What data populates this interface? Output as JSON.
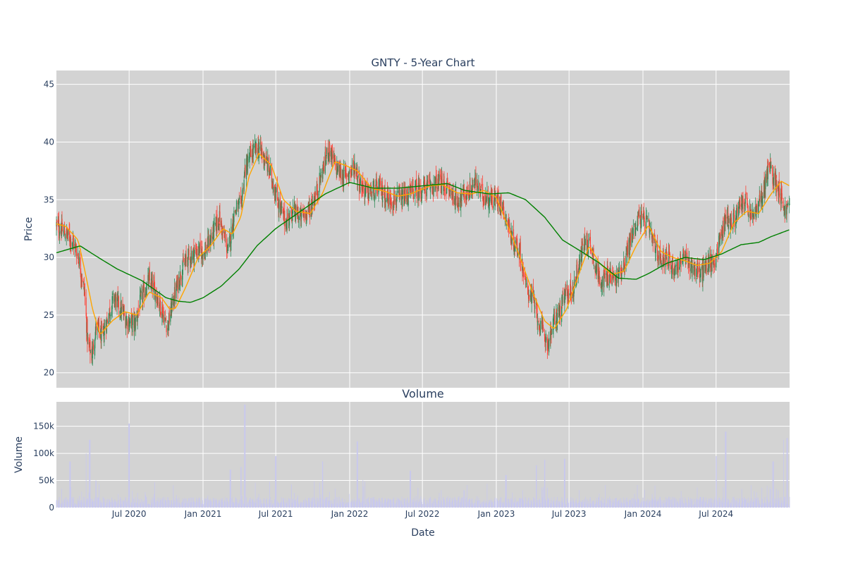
{
  "chart_data": {
    "type": "candlestick",
    "title": "GNTY - 5-Year Chart",
    "price_panel": {
      "ylabel": "Price",
      "y_ticks": [
        20,
        25,
        30,
        35,
        40,
        45
      ],
      "ylim": [
        18.7,
        46.2
      ],
      "up_color": "#2e8b57",
      "down_color": "#ff4136",
      "ma_short_color": "#ffa500",
      "ma_long_color": "#008000",
      "keypoints_close": [
        [
          "2020-01-02",
          32.8
        ],
        [
          "2020-01-20",
          32.2
        ],
        [
          "2020-02-10",
          31.5
        ],
        [
          "2020-02-25",
          30.2
        ],
        [
          "2020-03-12",
          27.0
        ],
        [
          "2020-03-20",
          22.5
        ],
        [
          "2020-03-30",
          21.5
        ],
        [
          "2020-04-10",
          24.0
        ],
        [
          "2020-04-25",
          23.0
        ],
        [
          "2020-05-10",
          25.0
        ],
        [
          "2020-05-25",
          26.5
        ],
        [
          "2020-06-10",
          25.5
        ],
        [
          "2020-06-25",
          24.5
        ],
        [
          "2020-07-15",
          24.2
        ],
        [
          "2020-08-01",
          26.5
        ],
        [
          "2020-08-20",
          28.0
        ],
        [
          "2020-09-05",
          27.0
        ],
        [
          "2020-09-20",
          25.5
        ],
        [
          "2020-10-05",
          24.0
        ],
        [
          "2020-10-20",
          26.5
        ],
        [
          "2020-11-10",
          29.0
        ],
        [
          "2020-11-25",
          30.0
        ],
        [
          "2020-12-15",
          30.5
        ],
        [
          "2021-01-05",
          30.5
        ],
        [
          "2021-01-25",
          32.0
        ],
        [
          "2021-02-10",
          33.5
        ],
        [
          "2021-02-20",
          32.0
        ],
        [
          "2021-03-05",
          30.5
        ],
        [
          "2021-03-20",
          34.0
        ],
        [
          "2021-04-05",
          34.5
        ],
        [
          "2021-04-15",
          37.5
        ],
        [
          "2021-05-01",
          39.0
        ],
        [
          "2021-05-20",
          39.5
        ],
        [
          "2021-06-05",
          38.5
        ],
        [
          "2021-06-20",
          37.0
        ],
        [
          "2021-07-05",
          35.0
        ],
        [
          "2021-07-25",
          33.0
        ],
        [
          "2021-08-10",
          34.0
        ],
        [
          "2021-09-01",
          33.5
        ],
        [
          "2021-09-20",
          34.0
        ],
        [
          "2021-10-10",
          35.5
        ],
        [
          "2021-10-25",
          37.5
        ],
        [
          "2021-11-10",
          39.5
        ],
        [
          "2021-11-25",
          38.0
        ],
        [
          "2021-12-15",
          37.0
        ],
        [
          "2022-01-05",
          37.5
        ],
        [
          "2022-01-15",
          38.0
        ],
        [
          "2022-01-25",
          36.5
        ],
        [
          "2022-02-15",
          35.5
        ],
        [
          "2022-03-15",
          36.0
        ],
        [
          "2022-04-10",
          35.0
        ],
        [
          "2022-05-10",
          35.0
        ],
        [
          "2022-06-10",
          35.8
        ],
        [
          "2022-07-10",
          36.0
        ],
        [
          "2022-08-10",
          36.5
        ],
        [
          "2022-09-01",
          36.0
        ],
        [
          "2022-09-25",
          35.0
        ],
        [
          "2022-10-20",
          35.5
        ],
        [
          "2022-11-10",
          36.5
        ],
        [
          "2022-11-25",
          35.5
        ],
        [
          "2022-12-20",
          35.0
        ],
        [
          "2023-01-10",
          35.0
        ],
        [
          "2023-01-25",
          33.5
        ],
        [
          "2023-02-10",
          31.5
        ],
        [
          "2023-03-01",
          30.5
        ],
        [
          "2023-03-15",
          27.5
        ],
        [
          "2023-04-01",
          26.5
        ],
        [
          "2023-04-20",
          24.0
        ],
        [
          "2023-05-10",
          22.5
        ],
        [
          "2023-05-25",
          24.5
        ],
        [
          "2023-06-10",
          25.5
        ],
        [
          "2023-06-25",
          27.0
        ],
        [
          "2023-07-10",
          27.0
        ],
        [
          "2023-07-25",
          29.5
        ],
        [
          "2023-08-10",
          31.5
        ],
        [
          "2023-08-25",
          31.0
        ],
        [
          "2023-09-10",
          28.5
        ],
        [
          "2023-09-25",
          28.0
        ],
        [
          "2023-10-10",
          28.5
        ],
        [
          "2023-10-25",
          28.0
        ],
        [
          "2023-11-15",
          29.5
        ],
        [
          "2023-12-01",
          31.5
        ],
        [
          "2023-12-20",
          33.5
        ],
        [
          "2024-01-10",
          33.0
        ],
        [
          "2024-01-25",
          31.5
        ],
        [
          "2024-02-10",
          30.0
        ],
        [
          "2024-03-01",
          30.0
        ],
        [
          "2024-03-20",
          29.0
        ],
        [
          "2024-04-10",
          30.0
        ],
        [
          "2024-04-25",
          29.5
        ],
        [
          "2024-05-10",
          29.0
        ],
        [
          "2024-05-25",
          28.5
        ],
        [
          "2024-06-10",
          29.5
        ],
        [
          "2024-06-25",
          29.5
        ],
        [
          "2024-07-10",
          31.5
        ],
        [
          "2024-07-25",
          33.5
        ],
        [
          "2024-08-10",
          33.0
        ],
        [
          "2024-08-25",
          34.0
        ],
        [
          "2024-09-10",
          35.0
        ],
        [
          "2024-09-25",
          33.5
        ],
        [
          "2024-10-10",
          34.0
        ],
        [
          "2024-10-25",
          35.5
        ],
        [
          "2024-11-10",
          38.0
        ],
        [
          "2024-11-20",
          37.0
        ],
        [
          "2024-12-05",
          36.0
        ],
        [
          "2024-12-20",
          34.0
        ],
        [
          "2024-12-31",
          34.5
        ]
      ],
      "ma_short_keypoints": [
        [
          "2020-01-02",
          32.9
        ],
        [
          "2020-01-25",
          32.7
        ],
        [
          "2020-02-25",
          31.5
        ],
        [
          "2020-03-15",
          28.5
        ],
        [
          "2020-04-01",
          25.5
        ],
        [
          "2020-04-20",
          23.3
        ],
        [
          "2020-05-20",
          24.5
        ],
        [
          "2020-06-20",
          25.3
        ],
        [
          "2020-07-20",
          25.0
        ],
        [
          "2020-08-20",
          27.0
        ],
        [
          "2020-09-20",
          26.5
        ],
        [
          "2020-10-10",
          25.5
        ],
        [
          "2020-10-25",
          25.6
        ],
        [
          "2020-11-20",
          27.5
        ],
        [
          "2020-12-20",
          30.0
        ],
        [
          "2021-01-20",
          31.0
        ],
        [
          "2021-02-20",
          32.5
        ],
        [
          "2021-03-15",
          32.0
        ],
        [
          "2021-04-05",
          33.5
        ],
        [
          "2021-04-25",
          37.0
        ],
        [
          "2021-05-20",
          39.0
        ],
        [
          "2021-06-20",
          38.0
        ],
        [
          "2021-07-20",
          35.0
        ],
        [
          "2021-08-20",
          34.0
        ],
        [
          "2021-09-25",
          33.8
        ],
        [
          "2021-10-25",
          35.5
        ],
        [
          "2021-11-25",
          38.3
        ],
        [
          "2021-12-20",
          38.0
        ],
        [
          "2022-01-20",
          37.5
        ],
        [
          "2022-02-25",
          36.0
        ],
        [
          "2022-04-01",
          35.7
        ],
        [
          "2022-05-01",
          35.3
        ],
        [
          "2022-06-01",
          35.5
        ],
        [
          "2022-07-20",
          36.2
        ],
        [
          "2022-08-20",
          36.3
        ],
        [
          "2022-09-25",
          35.6
        ],
        [
          "2022-11-01",
          35.5
        ],
        [
          "2022-12-01",
          35.8
        ],
        [
          "2023-01-01",
          35.2
        ],
        [
          "2023-02-01",
          32.5
        ],
        [
          "2023-03-01",
          30.0
        ],
        [
          "2023-04-01",
          27.0
        ],
        [
          "2023-05-01",
          24.5
        ],
        [
          "2023-05-25",
          23.8
        ],
        [
          "2023-06-25",
          25.5
        ],
        [
          "2023-07-25",
          28.5
        ],
        [
          "2023-08-20",
          31.0
        ],
        [
          "2023-09-15",
          29.5
        ],
        [
          "2023-10-15",
          28.5
        ],
        [
          "2023-11-15",
          28.8
        ],
        [
          "2023-12-15",
          31.0
        ],
        [
          "2024-01-15",
          32.8
        ],
        [
          "2024-02-15",
          30.5
        ],
        [
          "2024-03-15",
          30.0
        ],
        [
          "2024-04-15",
          29.7
        ],
        [
          "2024-05-15",
          29.3
        ],
        [
          "2024-06-15",
          29.5
        ],
        [
          "2024-07-15",
          30.5
        ],
        [
          "2024-08-15",
          33.0
        ],
        [
          "2024-09-15",
          34.0
        ],
        [
          "2024-10-15",
          33.8
        ],
        [
          "2024-11-15",
          35.5
        ],
        [
          "2024-12-10",
          36.6
        ],
        [
          "2024-12-31",
          36.2
        ]
      ],
      "ma_long_keypoints": [
        [
          "2020-01-02",
          30.4
        ],
        [
          "2020-03-01",
          31.0
        ],
        [
          "2020-04-15",
          30.0
        ],
        [
          "2020-06-01",
          29.0
        ],
        [
          "2020-08-01",
          28.0
        ],
        [
          "2020-10-01",
          26.5
        ],
        [
          "2020-11-01",
          26.2
        ],
        [
          "2020-12-01",
          26.1
        ],
        [
          "2021-01-01",
          26.5
        ],
        [
          "2021-02-15",
          27.5
        ],
        [
          "2021-04-01",
          29.0
        ],
        [
          "2021-05-15",
          31.0
        ],
        [
          "2021-07-01",
          32.5
        ],
        [
          "2021-09-01",
          34.0
        ],
        [
          "2021-11-01",
          35.5
        ],
        [
          "2022-01-01",
          36.5
        ],
        [
          "2022-03-01",
          36.0
        ],
        [
          "2022-05-01",
          36.0
        ],
        [
          "2022-07-01",
          36.2
        ],
        [
          "2022-09-01",
          36.4
        ],
        [
          "2022-10-15",
          35.8
        ],
        [
          "2022-12-15",
          35.5
        ],
        [
          "2023-02-01",
          35.6
        ],
        [
          "2023-03-15",
          35.0
        ],
        [
          "2023-05-01",
          33.5
        ],
        [
          "2023-06-15",
          31.5
        ],
        [
          "2023-08-01",
          30.5
        ],
        [
          "2023-09-15",
          29.5
        ],
        [
          "2023-11-01",
          28.2
        ],
        [
          "2023-12-15",
          28.1
        ],
        [
          "2024-01-15",
          28.6
        ],
        [
          "2024-03-01",
          29.5
        ],
        [
          "2024-04-15",
          30.0
        ],
        [
          "2024-06-01",
          29.8
        ],
        [
          "2024-07-15",
          30.3
        ],
        [
          "2024-09-01",
          31.1
        ],
        [
          "2024-10-15",
          31.3
        ],
        [
          "2024-11-15",
          31.8
        ],
        [
          "2024-12-31",
          32.4
        ]
      ]
    },
    "volume_panel": {
      "subtitle": "Volume",
      "ylabel": "Volume",
      "y_ticks": [
        0,
        50000,
        100000,
        150000
      ],
      "y_tick_labels": [
        "0",
        "50k",
        "100k",
        "150k"
      ],
      "ylim": [
        0,
        195000
      ],
      "bar_color": "#c8c8ee",
      "spikes": [
        [
          "2020-02-05",
          85000
        ],
        [
          "2020-03-15",
          100000
        ],
        [
          "2020-03-25",
          125000
        ],
        [
          "2020-04-10",
          50000
        ],
        [
          "2020-07-01",
          155000
        ],
        [
          "2021-03-10",
          70000
        ],
        [
          "2021-04-05",
          75000
        ],
        [
          "2021-04-15",
          190000
        ],
        [
          "2021-07-01",
          95000
        ],
        [
          "2021-10-25",
          85000
        ],
        [
          "2022-01-20",
          122000
        ],
        [
          "2022-06-01",
          68000
        ],
        [
          "2023-01-25",
          60000
        ],
        [
          "2023-04-10",
          78000
        ],
        [
          "2023-05-01",
          88000
        ],
        [
          "2023-06-20",
          90000
        ],
        [
          "2024-07-01",
          95000
        ],
        [
          "2024-07-25",
          140000
        ],
        [
          "2024-11-20",
          85000
        ],
        [
          "2024-12-15",
          125000
        ],
        [
          "2024-12-25",
          128000
        ]
      ]
    },
    "x_axis": {
      "label": "Date",
      "range": [
        "2020-01-02",
        "2024-12-31"
      ],
      "ticks": [
        {
          "date": "2020-07-01",
          "label": "Jul 2020"
        },
        {
          "date": "2021-01-01",
          "label": "Jan 2021"
        },
        {
          "date": "2021-07-01",
          "label": "Jul 2021"
        },
        {
          "date": "2022-01-01",
          "label": "Jan 2022"
        },
        {
          "date": "2022-07-01",
          "label": "Jul 2022"
        },
        {
          "date": "2023-01-01",
          "label": "Jan 2023"
        },
        {
          "date": "2023-07-01",
          "label": "Jul 2023"
        },
        {
          "date": "2024-01-01",
          "label": "Jan 2024"
        },
        {
          "date": "2024-07-01",
          "label": "Jul 2024"
        }
      ]
    },
    "plot_background": "#d3d3d3",
    "grid": true
  }
}
